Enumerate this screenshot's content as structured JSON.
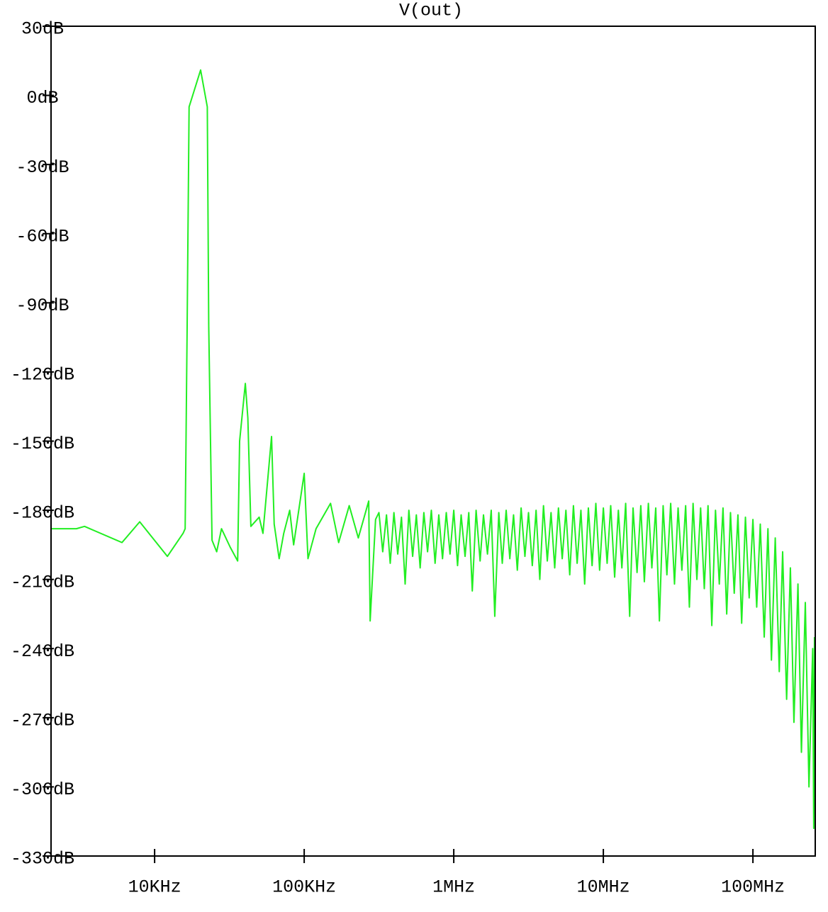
{
  "chart_data": {
    "type": "line",
    "xscale": "log",
    "series": [
      {
        "name": "V(out)",
        "color": "#22ee22",
        "values": [
          -188,
          -188,
          -187,
          -194,
          -185,
          -200,
          -190,
          -188,
          -100,
          -5,
          11,
          -5,
          -100,
          -193,
          -198,
          -188,
          -196,
          -202,
          -150,
          -125,
          -140,
          -187,
          -183,
          -190,
          -148,
          -186,
          -201,
          -190,
          -180,
          -195,
          -164,
          -201,
          -188,
          -177,
          -194,
          -178,
          -192,
          -176,
          -228,
          -184,
          -181,
          -198,
          -182,
          -203,
          -181,
          -199,
          -183,
          -212,
          -180,
          -200,
          -182,
          -205,
          -181,
          -198,
          -180,
          -203,
          -182,
          -201,
          -181,
          -199,
          -180,
          -204,
          -182,
          -200,
          -181,
          -215,
          -180,
          -202,
          -182,
          -199,
          -180,
          -226,
          -181,
          -203,
          -180,
          -201,
          -182,
          -206,
          -179,
          -200,
          -181,
          -204,
          -180,
          -210,
          -178,
          -202,
          -181,
          -205,
          -179,
          -201,
          -180,
          -208,
          -178,
          -203,
          -180,
          -212,
          -179,
          -204,
          -177,
          -206,
          -179,
          -203,
          -178,
          -209,
          -180,
          -205,
          -177,
          -226,
          -179,
          -207,
          -178,
          -211,
          -177,
          -205,
          -179,
          -228,
          -178,
          -208,
          -177,
          -212,
          -179,
          -206,
          -178,
          -222,
          -177,
          -210,
          -179,
          -214,
          -178,
          -230,
          -180,
          -212,
          -179,
          -225,
          -181,
          -216,
          -182,
          -229,
          -183,
          -218,
          -184,
          -222,
          -186,
          -235,
          -188,
          -245,
          -192,
          -250,
          -198,
          -262,
          -205,
          -272,
          -212,
          -285,
          -220,
          -300,
          -240,
          -318,
          -235
        ]
      }
    ],
    "x": [
      2030,
      3000,
      3400,
      6050,
      7950,
      12170,
      15500,
      16000,
      16500,
      17000,
      20300,
      22500,
      23000,
      24200,
      26000,
      28000,
      32000,
      35900,
      37000,
      40400,
      42000,
      44000,
      50000,
      53000,
      60500,
      63000,
      68000,
      73000,
      80000,
      85000,
      100000,
      106000,
      120000,
      150000,
      170000,
      200000,
      230000,
      270000,
      276000,
      300000,
      316000,
      335000,
      355000,
      376000,
      398000,
      422000,
      447000,
      473000,
      501000,
      531000,
      562000,
      596000,
      631000,
      668000,
      708000,
      750000,
      794000,
      841000,
      891000,
      944000,
      1000000,
      1060000,
      1120000,
      1190000,
      1260000,
      1330000,
      1410000,
      1500000,
      1580000,
      1680000,
      1780000,
      1880000,
      2000000,
      2110000,
      2240000,
      2370000,
      2510000,
      2660000,
      2820000,
      2990000,
      3160000,
      3350000,
      3550000,
      3760000,
      3980000,
      4220000,
      4470000,
      4730000,
      5010000,
      5310000,
      5620000,
      5960000,
      6310000,
      6680000,
      7080000,
      7500000,
      7940000,
      8410000,
      8910000,
      9440000,
      10000000,
      10600000,
      11200000,
      11900000,
      12600000,
      13300000,
      14100000,
      15000000,
      15800000,
      16800000,
      17800000,
      18800000,
      20000000,
      21100000,
      22400000,
      23700000,
      25100000,
      26600000,
      28200000,
      29900000,
      31600000,
      33500000,
      35500000,
      37600000,
      39800000,
      42200000,
      44700000,
      47300000,
      50100000,
      53100000,
      56200000,
      59600000,
      63100000,
      66800000,
      70800000,
      75000000,
      79400000,
      84100000,
      89100000,
      94400000,
      100000000,
      106000000,
      112000000,
      119000000,
      126000000,
      133000000,
      141000000,
      150000000,
      158000000,
      168000000,
      178000000,
      188000000,
      200000000,
      211000000,
      224000000,
      237000000,
      251000000,
      255000000,
      258000000
    ],
    "xlim": [
      2030,
      261000000
    ],
    "xticks": [
      {
        "value": 10000,
        "label": "10KHz"
      },
      {
        "value": 100000,
        "label": "100KHz"
      },
      {
        "value": 1000000,
        "label": "1MHz"
      },
      {
        "value": 10000000,
        "label": "10MHz"
      },
      {
        "value": 100000000,
        "label": "100MHz"
      }
    ],
    "ylim": [
      -330,
      30
    ],
    "yticks": [
      {
        "value": 30,
        "label": "30dB"
      },
      {
        "value": 0,
        "label": "0dB"
      },
      {
        "value": -30,
        "label": "-30dB"
      },
      {
        "value": -60,
        "label": "-60dB"
      },
      {
        "value": -90,
        "label": "-90dB"
      },
      {
        "value": -120,
        "label": "-120dB"
      },
      {
        "value": -150,
        "label": "-150dB"
      },
      {
        "value": -180,
        "label": "-180dB"
      },
      {
        "value": -210,
        "label": "-210dB"
      },
      {
        "value": -240,
        "label": "-240dB"
      },
      {
        "value": -270,
        "label": "-270dB"
      },
      {
        "value": -300,
        "label": "-300dB"
      },
      {
        "value": -330,
        "label": "-330dB"
      }
    ]
  }
}
